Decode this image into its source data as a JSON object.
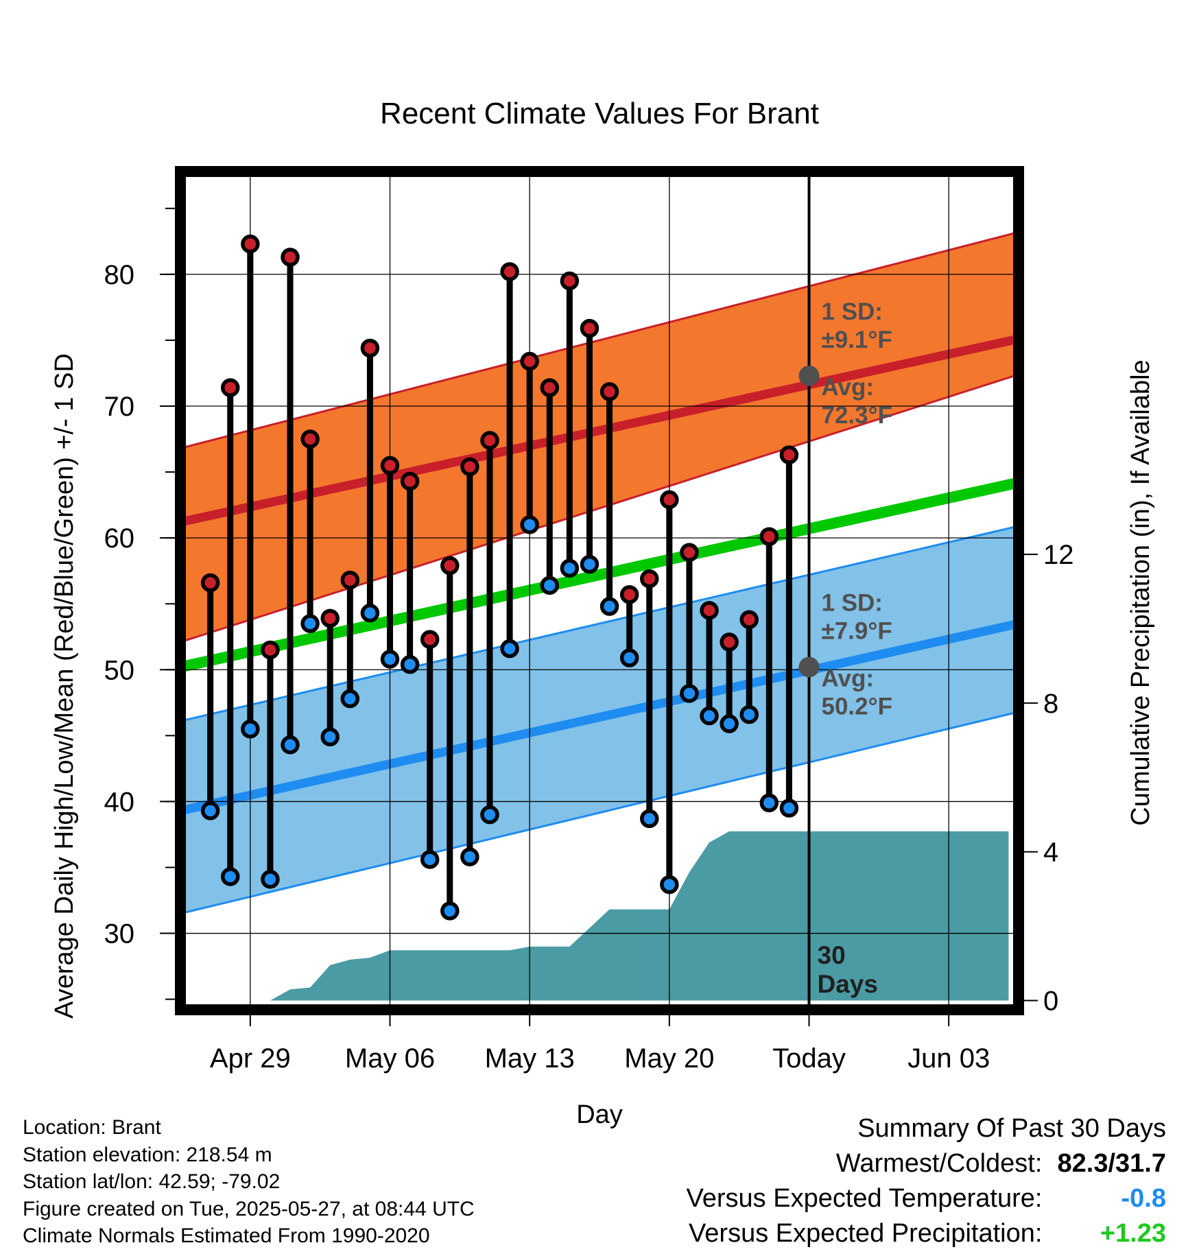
{
  "chart_data": {
    "type": "line",
    "title": "Recent Climate Values For Brant",
    "xlabel": "Day",
    "ylabel": "Average Daily High/Low/Mean (Red/Blue/Green) +/- 1 SD",
    "y2label": "Cumulative Precipitation (in), If Available",
    "xlim": [
      -0.5,
      41.5
    ],
    "ylim": [
      24.2,
      87.8
    ],
    "y2lim": [
      -0.25,
      22.3
    ],
    "x_ticks": [
      {
        "day": 3,
        "label": "Apr 29"
      },
      {
        "day": 10,
        "label": "May 06"
      },
      {
        "day": 17,
        "label": "May 13"
      },
      {
        "day": 24,
        "label": "May 20"
      },
      {
        "day": 31,
        "label": "Today"
      },
      {
        "day": 38,
        "label": "Jun 03"
      }
    ],
    "y_ticks": [
      30,
      40,
      50,
      60,
      70,
      80
    ],
    "y2_ticks": [
      0,
      4,
      8,
      12
    ],
    "grid": true,
    "today_day": 31,
    "today_label": [
      "30",
      "Days"
    ],
    "normals": {
      "high_mean": [
        61.2,
        75.1
      ],
      "high_sd_band": [
        [
          52.1,
          66.8
        ],
        [
          72.4,
          83.2
        ]
      ],
      "low_mean": [
        39.3,
        53.5
      ],
      "low_sd_band": [
        [
          31.5,
          46.1
        ],
        [
          46.8,
          60.9
        ]
      ],
      "mean": [
        50.2,
        64.2
      ]
    },
    "high_annotation": {
      "sd_label": "1 SD:",
      "sd_value": "±9.1°F",
      "avg_label": "Avg:",
      "avg_value": "72.3°F",
      "avg": 72.3
    },
    "low_annotation": {
      "sd_label": "1 SD:",
      "sd_value": "±7.9°F",
      "avg_label": "Avg:",
      "avg_value": "50.2°F",
      "avg": 50.2
    },
    "series": [
      {
        "name": "High",
        "color": "#c8202a",
        "x": [
          1,
          2,
          3,
          4,
          5,
          6,
          7,
          8,
          9,
          10,
          11,
          12,
          13,
          14,
          15,
          16,
          17,
          18,
          19,
          20,
          21,
          22,
          23,
          24,
          25,
          26,
          27,
          28,
          29,
          30
        ],
        "values": [
          56.6,
          71.4,
          82.3,
          51.5,
          81.3,
          67.5,
          53.9,
          56.8,
          74.4,
          65.5,
          64.3,
          52.3,
          57.9,
          65.4,
          67.4,
          80.2,
          73.4,
          71.4,
          79.5,
          75.9,
          71.1,
          55.7,
          56.9,
          62.9,
          58.9,
          54.5,
          52.1,
          53.8,
          60.1,
          66.3
        ]
      },
      {
        "name": "Low",
        "color": "#1e8cf0",
        "x": [
          1,
          2,
          3,
          4,
          5,
          6,
          7,
          8,
          9,
          10,
          11,
          12,
          13,
          14,
          15,
          16,
          17,
          18,
          19,
          20,
          21,
          22,
          23,
          24,
          25,
          26,
          27,
          28,
          29,
          30
        ],
        "values": [
          39.3,
          34.3,
          45.5,
          34.1,
          44.3,
          53.5,
          44.9,
          47.8,
          54.3,
          50.8,
          50.4,
          35.6,
          31.7,
          35.8,
          39.0,
          51.6,
          61.0,
          56.4,
          57.7,
          58.0,
          54.8,
          50.9,
          38.7,
          33.7,
          48.2,
          46.5,
          45.9,
          46.6,
          39.9,
          39.5
        ]
      }
    ],
    "precipitation": {
      "x": [
        0,
        4,
        5,
        6,
        7,
        8,
        9,
        10,
        11,
        12,
        13,
        14,
        15,
        16,
        17,
        18,
        19,
        20,
        21,
        22,
        23,
        24,
        25,
        26,
        27,
        28,
        29,
        30,
        31,
        41
      ],
      "values": [
        0,
        0,
        0.3,
        0.35,
        0.95,
        1.1,
        1.15,
        1.35,
        1.35,
        1.35,
        1.35,
        1.35,
        1.35,
        1.35,
        1.45,
        1.45,
        1.45,
        1.95,
        2.45,
        2.45,
        2.45,
        2.45,
        3.45,
        4.25,
        4.55,
        4.55,
        4.55,
        4.55,
        4.55,
        4.55
      ],
      "color": "#4a9ba4"
    }
  },
  "footer": {
    "location": "Location: Brant",
    "elevation": "Station elevation: 218.54 m",
    "latlon": "Station lat/lon: 42.59; -79.02",
    "created": "Figure created on Tue, 2025-05-27, at 08:44 UTC",
    "normals_source": "Climate Normals Estimated From 1990-2020"
  },
  "summary": {
    "heading": "Summary Of Past 30 Days",
    "warmest_label": "Warmest/Coldest:",
    "warmest_value": "82.3/31.7",
    "temp_label": "Versus Expected Temperature:",
    "temp_value": "-0.8",
    "precip_label": "Versus Expected Precipitation:",
    "precip_value": "+1.23",
    "colors": {
      "temp": "#1e8cf0",
      "precip": "#1ec81e"
    }
  }
}
